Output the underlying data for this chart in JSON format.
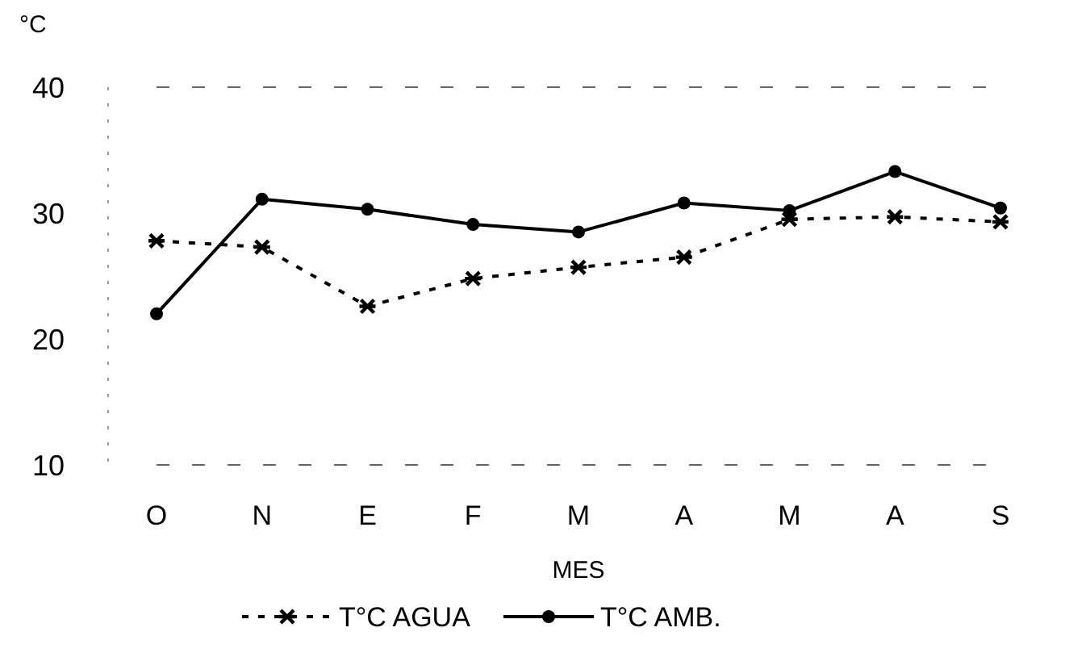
{
  "chart_data": {
    "type": "line",
    "ylabel": "°C",
    "xlabel": "MES",
    "categories": [
      "O",
      "N",
      "E",
      "F",
      "M",
      "A",
      "M",
      "A",
      "S"
    ],
    "ylim": [
      10,
      40
    ],
    "yticks": [
      10,
      20,
      30,
      40
    ],
    "legend": "bottom",
    "series": [
      {
        "name": "T°C AGUA",
        "color": "#000000",
        "marker": "cross",
        "line_style": "dashed",
        "values": [
          27.8,
          27.3,
          22.6,
          24.8,
          25.7,
          26.5,
          29.5,
          29.7,
          29.3
        ]
      },
      {
        "name": "T°C AMB.",
        "color": "#000000",
        "marker": "circle",
        "line_style": "solid",
        "values": [
          22.0,
          31.1,
          30.3,
          29.1,
          28.5,
          30.8,
          30.2,
          33.3,
          30.4
        ]
      }
    ]
  }
}
